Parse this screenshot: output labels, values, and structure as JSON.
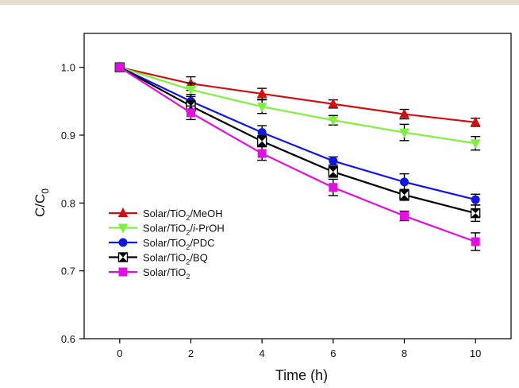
{
  "chart_data": {
    "type": "line",
    "title": "",
    "xlabel": "Time (h)",
    "ylabel": "C/C0",
    "ylabel_main": "C/C",
    "ylabel_sub": "0",
    "xlim": [
      -1,
      11
    ],
    "ylim": [
      0.6,
      1.05
    ],
    "xticks": [
      0,
      2,
      4,
      6,
      8,
      10
    ],
    "yticks": [
      0.6,
      0.7,
      0.8,
      0.9,
      1.0
    ],
    "xtick_labels": [
      "0",
      "2",
      "4",
      "6",
      "8",
      "10"
    ],
    "ytick_labels": [
      "0.6",
      "0.7",
      "0.8",
      "0.9",
      "1.0"
    ],
    "grid": false,
    "legend_position": "lower-left",
    "x": [
      0,
      2,
      4,
      6,
      8,
      10
    ],
    "series": [
      {
        "name": "Solar/TiO2/MeOH",
        "label_parts": [
          [
            "Solar/TiO",
            ""
          ],
          [
            "2",
            "sub"
          ],
          [
            "/MeOH",
            ""
          ]
        ],
        "marker": "triangle-up",
        "color": "#d01010",
        "values": [
          1.0,
          0.976,
          0.961,
          0.946,
          0.931,
          0.919
        ],
        "errors": [
          0.0,
          0.01,
          0.008,
          0.006,
          0.007,
          0.006
        ]
      },
      {
        "name": "Solar/TiO2/i-PrOH",
        "label_parts": [
          [
            "Solar/TiO",
            ""
          ],
          [
            "2",
            "sub"
          ],
          [
            "/",
            ""
          ],
          [
            "i",
            "italic"
          ],
          [
            "-PrOH",
            ""
          ]
        ],
        "marker": "triangle-down",
        "color": "#80f040",
        "values": [
          1.0,
          0.967,
          0.942,
          0.922,
          0.904,
          0.888
        ],
        "errors": [
          0.0,
          0.01,
          0.01,
          0.007,
          0.012,
          0.01
        ]
      },
      {
        "name": "Solar/TiO2/PDC",
        "label_parts": [
          [
            "Solar/TiO",
            ""
          ],
          [
            "2",
            "sub"
          ],
          [
            "/PDC",
            ""
          ]
        ],
        "marker": "circle",
        "color": "#1018e0",
        "values": [
          1.0,
          0.95,
          0.904,
          0.862,
          0.831,
          0.805
        ],
        "errors": [
          0.0,
          0.01,
          0.01,
          0.006,
          0.012,
          0.008
        ]
      },
      {
        "name": "Solar/TiO2/BQ",
        "label_parts": [
          [
            "Solar/TiO",
            ""
          ],
          [
            "2",
            "sub"
          ],
          [
            "/BQ",
            ""
          ]
        ],
        "marker": "hourglass-square",
        "color": "#000000",
        "values": [
          1.0,
          0.943,
          0.891,
          0.846,
          0.812,
          0.785
        ],
        "errors": [
          0.0,
          0.008,
          0.008,
          0.008,
          0.008,
          0.012
        ]
      },
      {
        "name": "Solar/TiO2",
        "label_parts": [
          [
            "Solar/TiO",
            ""
          ],
          [
            "2",
            "sub"
          ]
        ],
        "marker": "square",
        "color": "#e010e0",
        "values": [
          1.0,
          0.933,
          0.873,
          0.823,
          0.781,
          0.743
        ],
        "errors": [
          0.0,
          0.01,
          0.01,
          0.012,
          0.007,
          0.013
        ]
      }
    ]
  }
}
